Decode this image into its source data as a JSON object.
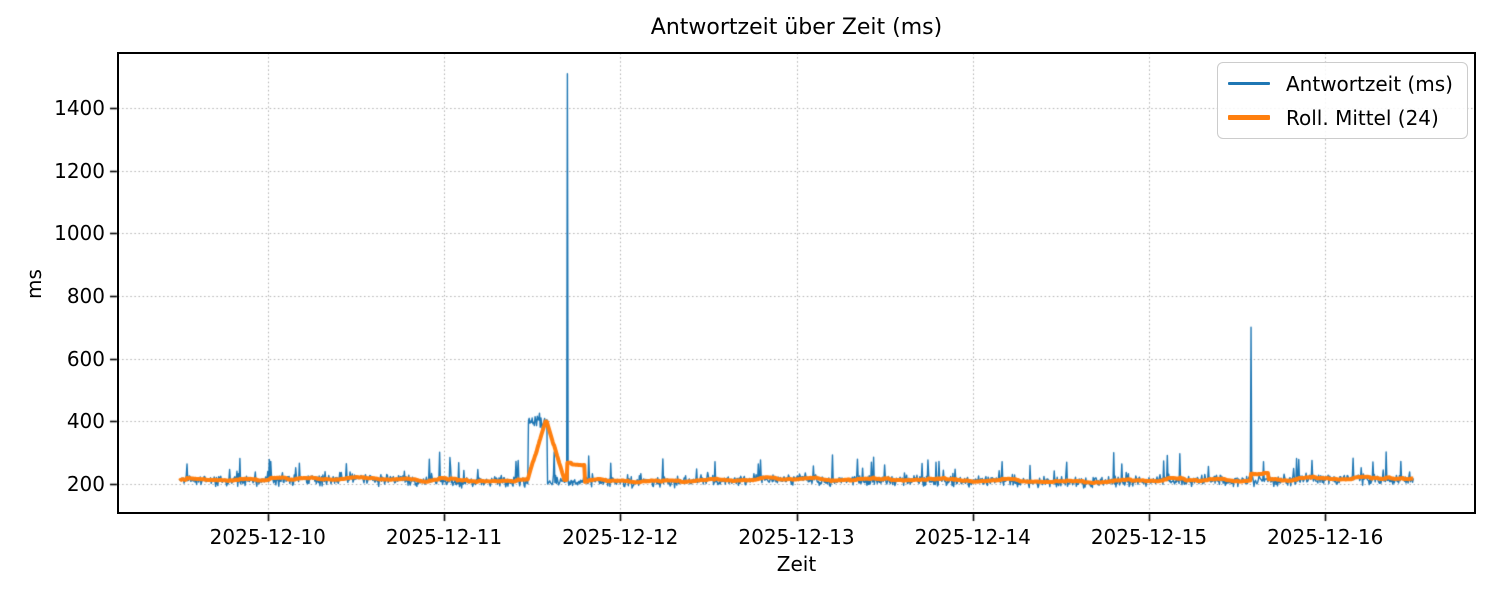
{
  "chart_data": {
    "type": "line",
    "title": "Antwortzeit über Zeit (ms)",
    "xlabel": "Zeit",
    "ylabel": "ms",
    "grid": true,
    "grid_style": "dotted",
    "grid_color": "#b0b0b0",
    "background": "#ffffff",
    "legend_position": "upper right",
    "ylim": [
      107,
      1576
    ],
    "xlim": [
      "2025-12-09T03:36:00",
      "2025-12-16T20:24:00"
    ],
    "y_ticks": [
      200,
      400,
      600,
      800,
      1000,
      1200,
      1400
    ],
    "x_ticks": [
      {
        "t": "2025-12-10T00:00:00",
        "label": "2025-12-10"
      },
      {
        "t": "2025-12-11T00:00:00",
        "label": "2025-12-11"
      },
      {
        "t": "2025-12-12T00:00:00",
        "label": "2025-12-12"
      },
      {
        "t": "2025-12-13T00:00:00",
        "label": "2025-12-13"
      },
      {
        "t": "2025-12-14T00:00:00",
        "label": "2025-12-14"
      },
      {
        "t": "2025-12-15T00:00:00",
        "label": "2025-12-15"
      },
      {
        "t": "2025-12-16T00:00:00",
        "label": "2025-12-16"
      }
    ],
    "series": [
      {
        "name": "Antwortzeit (ms)",
        "color": "#1f77b4",
        "linewidth": 1.4,
        "role": "raw"
      },
      {
        "name": "Roll. Mittel (24)",
        "color": "#ff7f0e",
        "linewidth": 4,
        "role": "rolling_mean",
        "window": 24
      }
    ],
    "series_spec": {
      "start": "2025-12-09T12:00:00",
      "end": "2025-12-16T12:00:00",
      "sample_interval_minutes": 6,
      "baseline": 210,
      "noise_std": 8,
      "min_value": 184,
      "spike_prob": 0.05,
      "spike_scale": 24,
      "seed": 1234,
      "events": [
        {
          "start": "2025-12-11T11:30:00",
          "end": "2025-12-11T14:00:00",
          "level": 400,
          "noise_std": 14
        }
      ],
      "spikes": [
        {
          "t": "2025-12-09T20:12:00",
          "value": 281
        },
        {
          "t": "2025-12-10T00:24:00",
          "value": 272
        },
        {
          "t": "2025-12-10T04:18:00",
          "value": 266
        },
        {
          "t": "2025-12-10T22:00:00",
          "value": 279
        },
        {
          "t": "2025-12-10T23:24:00",
          "value": 301
        },
        {
          "t": "2025-12-11T00:48:00",
          "value": 284
        },
        {
          "t": "2025-12-11T02:00:00",
          "value": 268
        },
        {
          "t": "2025-12-11T09:48:00",
          "value": 272
        },
        {
          "t": "2025-12-11T15:00:00",
          "value": 302
        },
        {
          "t": "2025-12-11T16:48:00",
          "value": 1510
        },
        {
          "t": "2025-12-11T22:42:00",
          "value": 266
        },
        {
          "t": "2025-12-12T05:48:00",
          "value": 280
        },
        {
          "t": "2025-12-12T12:54:00",
          "value": 271
        },
        {
          "t": "2025-12-12T18:48:00",
          "value": 264
        },
        {
          "t": "2025-12-13T04:54:00",
          "value": 292
        },
        {
          "t": "2025-12-13T08:18:00",
          "value": 279
        },
        {
          "t": "2025-12-13T17:06:00",
          "value": 265
        },
        {
          "t": "2025-12-14T04:00:00",
          "value": 271
        },
        {
          "t": "2025-12-14T12:48:00",
          "value": 269
        },
        {
          "t": "2025-12-14T20:18:00",
          "value": 264
        },
        {
          "t": "2025-12-15T02:30:00",
          "value": 291
        },
        {
          "t": "2025-12-15T04:12:00",
          "value": 296
        },
        {
          "t": "2025-12-15T13:54:00",
          "value": 700
        },
        {
          "t": "2025-12-15T15:36:00",
          "value": 271
        },
        {
          "t": "2025-12-15T20:06:00",
          "value": 281
        },
        {
          "t": "2025-12-15T22:12:00",
          "value": 275
        },
        {
          "t": "2025-12-16T03:48:00",
          "value": 282
        },
        {
          "t": "2025-12-16T06:30:00",
          "value": 270
        },
        {
          "t": "2025-12-16T10:18:00",
          "value": 272
        }
      ]
    }
  }
}
